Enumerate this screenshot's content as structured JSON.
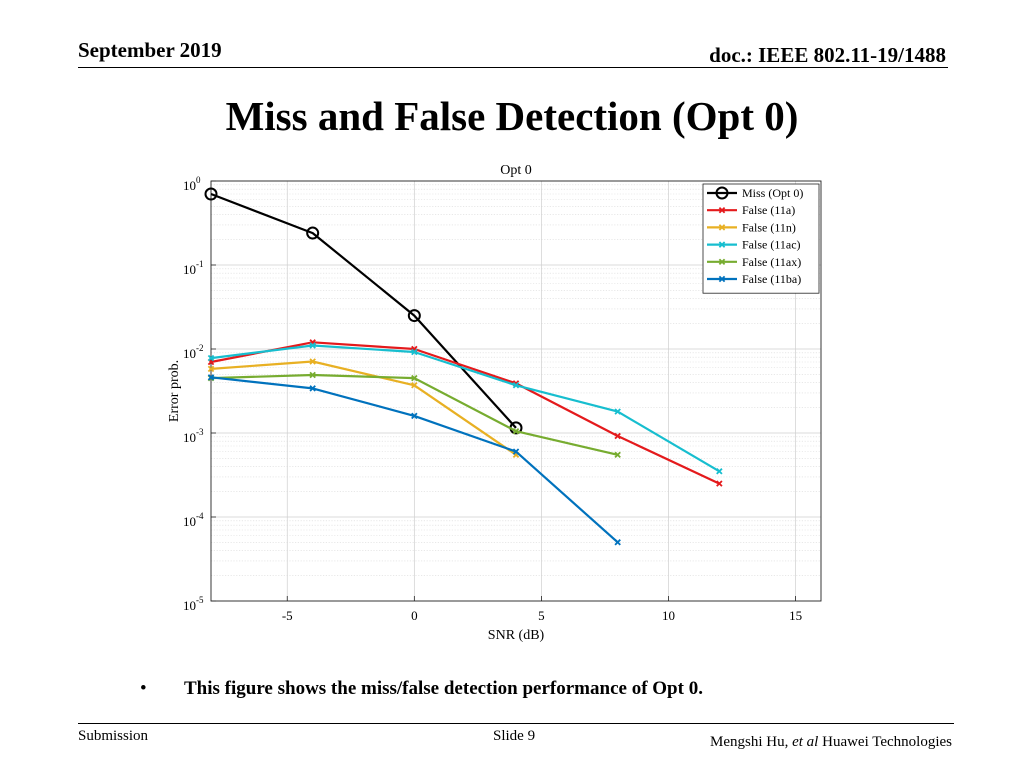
{
  "header": {
    "date": "September 2019",
    "doc_id": "doc.: IEEE 802.11-19/1488"
  },
  "slide_title": "Miss and False Detection (Opt 0)",
  "bullet": "This figure shows the miss/false detection performance of Opt 0.",
  "footer": {
    "left": "Submission",
    "center": "Slide 9",
    "author": "Mengshi Hu,",
    "et_al": "et al",
    "org": "Huawei Technologies"
  },
  "chart_data": {
    "type": "line",
    "title": "Opt 0",
    "xlabel": "SNR (dB)",
    "ylabel": "Error prob.",
    "yscale": "log",
    "xlim": [
      -8,
      16
    ],
    "ylim": [
      1e-05,
      1
    ],
    "xticks": [
      -5,
      0,
      5,
      10,
      15
    ],
    "yticks": [
      {
        "base": "10",
        "exp": "0",
        "value": 1
      },
      {
        "base": "10",
        "exp": "-1",
        "value": 0.1
      },
      {
        "base": "10",
        "exp": "-2",
        "value": 0.01
      },
      {
        "base": "10",
        "exp": "-3",
        "value": 0.001
      },
      {
        "base": "10",
        "exp": "-4",
        "value": 0.0001
      },
      {
        "base": "10",
        "exp": "-5",
        "value": 1e-05
      }
    ],
    "grid": true,
    "legend_position": "top-right",
    "series": [
      {
        "name": "Miss (Opt 0)",
        "color": "#000000",
        "marker": "circle",
        "x": [
          -8,
          -4,
          0,
          4
        ],
        "y": [
          0.7,
          0.24,
          0.025,
          0.00115
        ]
      },
      {
        "name": "False (11a)",
        "color": "#e41a1c",
        "marker": "x",
        "x": [
          -8,
          -4,
          0,
          4,
          8,
          12
        ],
        "y": [
          0.007,
          0.012,
          0.01,
          0.0039,
          0.00092,
          0.00025
        ]
      },
      {
        "name": "False (11n)",
        "color": "#e8b023",
        "marker": "x",
        "x": [
          -8,
          -4,
          0,
          4
        ],
        "y": [
          0.0058,
          0.0071,
          0.0037,
          0.00055
        ]
      },
      {
        "name": "False (11ac)",
        "color": "#17becf",
        "marker": "x",
        "x": [
          -8,
          -4,
          0,
          4,
          8,
          12
        ],
        "y": [
          0.0078,
          0.011,
          0.0092,
          0.0037,
          0.0018,
          0.00035
        ]
      },
      {
        "name": "False (11ax)",
        "color": "#77ac30",
        "marker": "x",
        "x": [
          -8,
          -4,
          0,
          4,
          8
        ],
        "y": [
          0.0045,
          0.0049,
          0.0045,
          0.00105,
          0.00055
        ]
      },
      {
        "name": "False (11ba)",
        "color": "#0072bd",
        "marker": "x",
        "x": [
          -8,
          -4,
          0,
          4,
          8
        ],
        "y": [
          0.0046,
          0.0034,
          0.0016,
          0.0006,
          5e-05
        ]
      }
    ]
  }
}
